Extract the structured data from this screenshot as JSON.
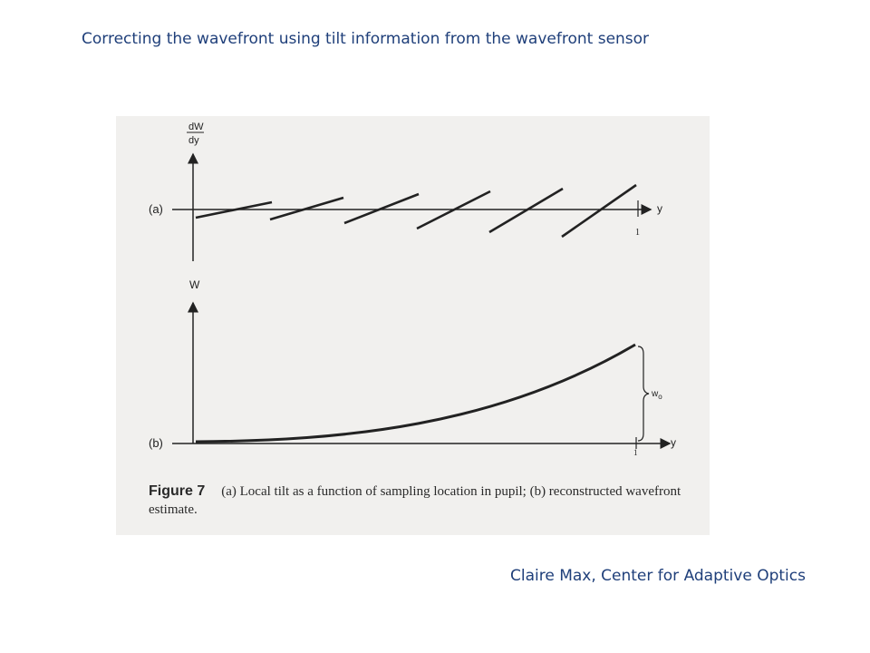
{
  "slide": {
    "title": "Correcting the wavefront using tilt information from the wavefront sensor",
    "credit": "Claire Max, Center for Adaptive Optics"
  },
  "figure": {
    "panel_a": {
      "label": "(a)",
      "y_axis_label_num": "dW",
      "y_axis_label_den": "dy",
      "x_axis_label": "y",
      "tick_label": "1",
      "segment_count": 6
    },
    "panel_b": {
      "label": "(b)",
      "y_axis_label": "W",
      "x_axis_label": "y",
      "tick_label": "1",
      "brace_label": "w",
      "brace_label_sub": "o"
    },
    "caption": {
      "figure_label": "Figure 7",
      "text": "(a) Local tilt as a function of sampling location in pupil; (b) reconstructed wavefront estimate."
    }
  }
}
